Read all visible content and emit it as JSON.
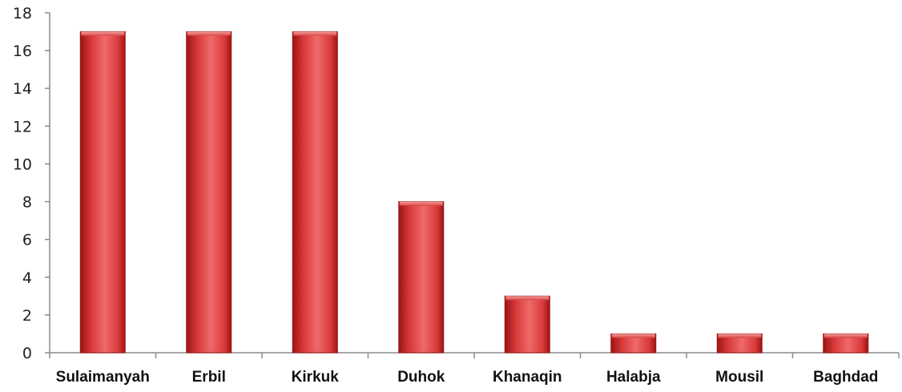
{
  "chart_data": {
    "type": "bar",
    "title": "",
    "xlabel": "",
    "ylabel": "",
    "categories": [
      "Sulaimanyah",
      "Erbil",
      "Kirkuk",
      "Duhok",
      "Khanaqin",
      "Halabja",
      "Mousil",
      "Baghdad"
    ],
    "values": [
      17,
      17,
      17,
      8,
      3,
      1,
      1,
      1
    ],
    "ylim": [
      0,
      18
    ],
    "yticks": [
      "0",
      "2",
      "4",
      "6",
      "8",
      "10",
      "12",
      "14",
      "16",
      "18"
    ],
    "grid": false,
    "legend": "none",
    "colors": {
      "bar_main": "#d93a3a",
      "bar_light": "#ef6a6a",
      "bar_dark": "#9c1414",
      "bar_top": "#f08080"
    }
  }
}
